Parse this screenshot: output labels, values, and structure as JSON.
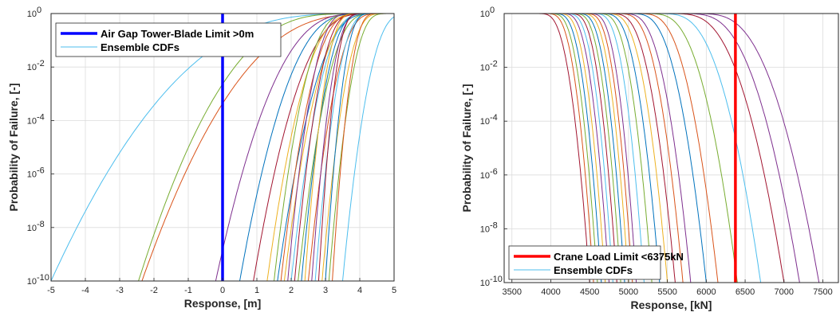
{
  "chart_data": [
    {
      "type": "line",
      "title": "",
      "xlabel": "Response, [m]",
      "ylabel": "Probability of Failure, [-]",
      "xlim": [
        -5,
        5
      ],
      "ylim": [
        1e-10,
        1
      ],
      "yscale": "log",
      "grid": true,
      "xticks": [
        "-5",
        "-4",
        "-3",
        "-2",
        "-1",
        "0",
        "1",
        "2",
        "3",
        "4",
        "5"
      ],
      "yticks": [
        "10",
        "10",
        "10",
        "10",
        "10",
        "10"
      ],
      "yticks_exp": [
        "-10",
        "-8",
        "-6",
        "-4",
        "-2",
        "0"
      ],
      "legend_position": "top-left",
      "legend": [
        "Air Gap Tower-Blade Limit >0m",
        "Ensemble CDFs"
      ],
      "limit": {
        "name": "Air Gap Tower-Blade Limit >0m",
        "x": 0,
        "color": "#0000ff"
      },
      "ensemble_name": "Ensemble CDFs",
      "ensemble_legend_color": "#4dbeee",
      "ensemble_direction": "increasing",
      "ensemble_curves": [
        {
          "x_at_1e-10": -5.0,
          "x_at_1": 4.9,
          "color": "#4dbeee"
        },
        {
          "x_at_1e-10": -2.45,
          "x_at_1": 4.4,
          "color": "#77ac30"
        },
        {
          "x_at_1e-10": -2.35,
          "x_at_1": 5.3,
          "color": "#d95319"
        },
        {
          "x_at_1e-10": -0.2,
          "x_at_1": 4.5,
          "color": "#7e2f8e"
        },
        {
          "x_at_1e-10": 0.5,
          "x_at_1": 4.4,
          "color": "#0072bd"
        },
        {
          "x_at_1e-10": 0.9,
          "x_at_1": 4.6,
          "color": "#a2142f"
        },
        {
          "x_at_1e-10": 1.3,
          "x_at_1": 4.3,
          "color": "#edb120"
        },
        {
          "x_at_1e-10": 1.5,
          "x_at_1": 4.0,
          "color": "#77ac30"
        },
        {
          "x_at_1e-10": 1.6,
          "x_at_1": 4.7,
          "color": "#0072bd"
        },
        {
          "x_at_1e-10": 1.7,
          "x_at_1": 4.2,
          "color": "#d95319"
        },
        {
          "x_at_1e-10": 1.8,
          "x_at_1": 4.5,
          "color": "#edb120"
        },
        {
          "x_at_1e-10": 1.9,
          "x_at_1": 3.9,
          "color": "#7e2f8e"
        },
        {
          "x_at_1e-10": 2.0,
          "x_at_1": 4.4,
          "color": "#4dbeee"
        },
        {
          "x_at_1e-10": 2.1,
          "x_at_1": 4.1,
          "color": "#a2142f"
        },
        {
          "x_at_1e-10": 2.2,
          "x_at_1": 4.6,
          "color": "#77ac30"
        },
        {
          "x_at_1e-10": 2.3,
          "x_at_1": 4.3,
          "color": "#0072bd"
        },
        {
          "x_at_1e-10": 2.4,
          "x_at_1": 4.0,
          "color": "#edb120"
        },
        {
          "x_at_1e-10": 2.5,
          "x_at_1": 4.7,
          "color": "#d95319"
        },
        {
          "x_at_1e-10": 2.6,
          "x_at_1": 4.2,
          "color": "#7e2f8e"
        },
        {
          "x_at_1e-10": 2.7,
          "x_at_1": 4.5,
          "color": "#4dbeee"
        },
        {
          "x_at_1e-10": 2.8,
          "x_at_1": 4.1,
          "color": "#a2142f"
        },
        {
          "x_at_1e-10": 2.9,
          "x_at_1": 4.8,
          "color": "#edb120"
        },
        {
          "x_at_1e-10": 3.0,
          "x_at_1": 4.4,
          "color": "#0072bd"
        },
        {
          "x_at_1e-10": 3.1,
          "x_at_1": 4.9,
          "color": "#77ac30"
        },
        {
          "x_at_1e-10": 3.2,
          "x_at_1": 4.6,
          "color": "#d95319"
        },
        {
          "x_at_1e-10": 3.5,
          "x_at_1": 5.6,
          "color": "#4dbeee"
        }
      ]
    },
    {
      "type": "line",
      "title": "",
      "xlabel": "Response, [kN]",
      "ylabel": "Probability of Failure, [-]",
      "xlim": [
        3400,
        7700
      ],
      "ylim": [
        1e-10,
        1
      ],
      "yscale": "log",
      "grid": true,
      "xticks": [
        "3500",
        "4000",
        "4500",
        "5000",
        "5500",
        "6000",
        "6500",
        "7000",
        "7500"
      ],
      "xtick_values": [
        3500,
        4000,
        4500,
        5000,
        5500,
        6000,
        6500,
        7000,
        7500
      ],
      "yticks": [
        "10",
        "10",
        "10",
        "10",
        "10",
        "10"
      ],
      "yticks_exp": [
        "-10",
        "-8",
        "-6",
        "-4",
        "-2",
        "0"
      ],
      "legend_position": "bottom-left",
      "legend": [
        "Crane Load Limit <6375kN",
        "Ensemble CDFs"
      ],
      "limit": {
        "name": "Crane Load Limit <6375kN",
        "x": 6375,
        "color": "#ff0000"
      },
      "ensemble_name": "Ensemble CDFs",
      "ensemble_legend_color": "#4dbeee",
      "ensemble_direction": "decreasing",
      "ensemble_curves": [
        {
          "x_at_1": 3800,
          "x_at_1e-10": 4500,
          "color": "#a2142f"
        },
        {
          "x_at_1": 3900,
          "x_at_1e-10": 4550,
          "color": "#d95319"
        },
        {
          "x_at_1": 3950,
          "x_at_1e-10": 4600,
          "color": "#77ac30"
        },
        {
          "x_at_1": 4000,
          "x_at_1e-10": 4650,
          "color": "#0072bd"
        },
        {
          "x_at_1": 4050,
          "x_at_1e-10": 4700,
          "color": "#edb120"
        },
        {
          "x_at_1": 4100,
          "x_at_1e-10": 4750,
          "color": "#7e2f8e"
        },
        {
          "x_at_1": 4150,
          "x_at_1e-10": 4800,
          "color": "#4dbeee"
        },
        {
          "x_at_1": 4200,
          "x_at_1e-10": 4850,
          "color": "#a2142f"
        },
        {
          "x_at_1": 4250,
          "x_at_1e-10": 4900,
          "color": "#77ac30"
        },
        {
          "x_at_1": 4300,
          "x_at_1e-10": 4950,
          "color": "#0072bd"
        },
        {
          "x_at_1": 4350,
          "x_at_1e-10": 5000,
          "color": "#edb120"
        },
        {
          "x_at_1": 4400,
          "x_at_1e-10": 5050,
          "color": "#d95319"
        },
        {
          "x_at_1": 4450,
          "x_at_1e-10": 5100,
          "color": "#7e2f8e"
        },
        {
          "x_at_1": 4500,
          "x_at_1e-10": 5200,
          "color": "#4dbeee"
        },
        {
          "x_at_1": 4550,
          "x_at_1e-10": 5300,
          "color": "#77ac30"
        },
        {
          "x_at_1": 4600,
          "x_at_1e-10": 5400,
          "color": "#0072bd"
        },
        {
          "x_at_1": 4650,
          "x_at_1e-10": 5500,
          "color": "#edb120"
        },
        {
          "x_at_1": 4700,
          "x_at_1e-10": 5600,
          "color": "#a2142f"
        },
        {
          "x_at_1": 4800,
          "x_at_1e-10": 5700,
          "color": "#d95319"
        },
        {
          "x_at_1": 4850,
          "x_at_1e-10": 5800,
          "color": "#7e2f8e"
        },
        {
          "x_at_1": 4950,
          "x_at_1e-10": 6000,
          "color": "#0072bd"
        },
        {
          "x_at_1": 5050,
          "x_at_1e-10": 6150,
          "color": "#d95319"
        },
        {
          "x_at_1": 5150,
          "x_at_1e-10": 6400,
          "color": "#77ac30"
        },
        {
          "x_at_1": 5300,
          "x_at_1e-10": 6700,
          "color": "#4dbeee"
        },
        {
          "x_at_1": 5450,
          "x_at_1e-10": 7000,
          "color": "#a2142f"
        },
        {
          "x_at_1": 5600,
          "x_at_1e-10": 7200,
          "color": "#7e2f8e"
        },
        {
          "x_at_1": 5750,
          "x_at_1e-10": 7450,
          "color": "#7e2f8e"
        }
      ]
    }
  ]
}
